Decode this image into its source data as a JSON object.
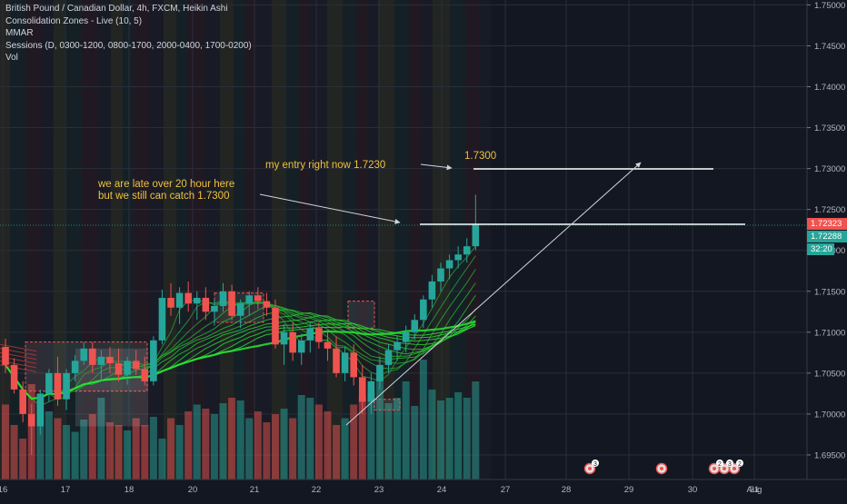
{
  "legend": {
    "title": "British Pound / Canadian Dollar, 4h, FXCM, Heikin Ashi",
    "line1": "Consolidation Zones - Live (10, 5)",
    "line2": "MMAR",
    "line3": "Sessions (D, 0300-1200, 0800-1700, 2000-0400, 1700-0200)",
    "line4": "Vol"
  },
  "badges": {
    "last_price": "1.72323",
    "second_price": "1.72288",
    "countdown": "32:20",
    "last_color": "#ef5350",
    "second_color": "#26a69a"
  },
  "annotations": {
    "note_late": "we are late over 20 hour here\nbut we still can catch 1.7300",
    "note_entry": "my entry right now 1.7230",
    "note_target": "1.7300"
  },
  "event_badges": [
    "3",
    "2",
    "3",
    "2"
  ],
  "chart_data": {
    "type": "candlestick",
    "title": "British Pound / Canadian Dollar, 4h, FXCM, Heikin Ashi",
    "y_axis_ticks": [
      "1.75000",
      "1.74500",
      "1.74000",
      "1.73500",
      "1.73000",
      "1.72500",
      "1.72000",
      "1.71500",
      "1.71000",
      "1.70500",
      "1.70000",
      "1.69500"
    ],
    "y_range": [
      1.692,
      1.7506
    ],
    "x_axis_ticks": [
      "16",
      "17",
      "18",
      "20",
      "21",
      "22",
      "23",
      "24",
      "27",
      "28",
      "29",
      "30",
      "31",
      "Aug"
    ],
    "levels": {
      "entry": 1.723,
      "target": 1.73
    },
    "up_color": "#26a69a",
    "down_color": "#ef5350",
    "candles": [
      {
        "o": 1.7082,
        "h": 1.7092,
        "l": 1.705,
        "c": 1.706
      },
      {
        "o": 1.706,
        "h": 1.7068,
        "l": 1.7025,
        "c": 1.703
      },
      {
        "o": 1.703,
        "h": 1.704,
        "l": 1.699,
        "c": 1.7
      },
      {
        "o": 1.7,
        "h": 1.7012,
        "l": 1.695,
        "c": 1.6985
      },
      {
        "o": 1.6985,
        "h": 1.703,
        "l": 1.6975,
        "c": 1.7025
      },
      {
        "o": 1.7025,
        "h": 1.7055,
        "l": 1.7015,
        "c": 1.705
      },
      {
        "o": 1.705,
        "h": 1.707,
        "l": 1.701,
        "c": 1.7018
      },
      {
        "o": 1.7018,
        "h": 1.7055,
        "l": 1.7005,
        "c": 1.705
      },
      {
        "o": 1.705,
        "h": 1.7072,
        "l": 1.704,
        "c": 1.7065
      },
      {
        "o": 1.7065,
        "h": 1.7088,
        "l": 1.706,
        "c": 1.708
      },
      {
        "o": 1.708,
        "h": 1.7088,
        "l": 1.705,
        "c": 1.706
      },
      {
        "o": 1.706,
        "h": 1.7078,
        "l": 1.704,
        "c": 1.707
      },
      {
        "o": 1.707,
        "h": 1.7082,
        "l": 1.705,
        "c": 1.7062
      },
      {
        "o": 1.7062,
        "h": 1.708,
        "l": 1.704,
        "c": 1.7048
      },
      {
        "o": 1.7048,
        "h": 1.707,
        "l": 1.7036,
        "c": 1.7065
      },
      {
        "o": 1.7065,
        "h": 1.7078,
        "l": 1.7048,
        "c": 1.7055
      },
      {
        "o": 1.7055,
        "h": 1.707,
        "l": 1.7035,
        "c": 1.704
      },
      {
        "o": 1.704,
        "h": 1.7095,
        "l": 1.7035,
        "c": 1.709
      },
      {
        "o": 1.709,
        "h": 1.7152,
        "l": 1.7085,
        "c": 1.7142
      },
      {
        "o": 1.7142,
        "h": 1.716,
        "l": 1.712,
        "c": 1.713
      },
      {
        "o": 1.713,
        "h": 1.7155,
        "l": 1.711,
        "c": 1.7148
      },
      {
        "o": 1.7148,
        "h": 1.7162,
        "l": 1.7125,
        "c": 1.7135
      },
      {
        "o": 1.7135,
        "h": 1.715,
        "l": 1.7115,
        "c": 1.7142
      },
      {
        "o": 1.7142,
        "h": 1.7155,
        "l": 1.7115,
        "c": 1.7125
      },
      {
        "o": 1.7125,
        "h": 1.714,
        "l": 1.7108,
        "c": 1.7132
      },
      {
        "o": 1.7132,
        "h": 1.716,
        "l": 1.7125,
        "c": 1.715
      },
      {
        "o": 1.715,
        "h": 1.7158,
        "l": 1.7115,
        "c": 1.712
      },
      {
        "o": 1.712,
        "h": 1.714,
        "l": 1.7105,
        "c": 1.7135
      },
      {
        "o": 1.7135,
        "h": 1.715,
        "l": 1.712,
        "c": 1.7145
      },
      {
        "o": 1.7145,
        "h": 1.7155,
        "l": 1.7128,
        "c": 1.7138
      },
      {
        "o": 1.7138,
        "h": 1.7148,
        "l": 1.712,
        "c": 1.713
      },
      {
        "o": 1.713,
        "h": 1.714,
        "l": 1.708,
        "c": 1.7085
      },
      {
        "o": 1.7085,
        "h": 1.711,
        "l": 1.706,
        "c": 1.71
      },
      {
        "o": 1.71,
        "h": 1.7112,
        "l": 1.7065,
        "c": 1.7075
      },
      {
        "o": 1.7075,
        "h": 1.7098,
        "l": 1.706,
        "c": 1.709
      },
      {
        "o": 1.709,
        "h": 1.7112,
        "l": 1.7075,
        "c": 1.7105
      },
      {
        "o": 1.7105,
        "h": 1.7112,
        "l": 1.708,
        "c": 1.7088
      },
      {
        "o": 1.7088,
        "h": 1.71,
        "l": 1.7065,
        "c": 1.708
      },
      {
        "o": 1.708,
        "h": 1.7095,
        "l": 1.7045,
        "c": 1.705
      },
      {
        "o": 1.705,
        "h": 1.7082,
        "l": 1.704,
        "c": 1.7075
      },
      {
        "o": 1.7075,
        "h": 1.7085,
        "l": 1.7035,
        "c": 1.7045
      },
      {
        "o": 1.7045,
        "h": 1.706,
        "l": 1.7,
        "c": 1.7015
      },
      {
        "o": 1.7015,
        "h": 1.705,
        "l": 1.7,
        "c": 1.704
      },
      {
        "o": 1.704,
        "h": 1.707,
        "l": 1.703,
        "c": 1.706
      },
      {
        "o": 1.706,
        "h": 1.7085,
        "l": 1.705,
        "c": 1.7078
      },
      {
        "o": 1.7078,
        "h": 1.7095,
        "l": 1.7065,
        "c": 1.7088
      },
      {
        "o": 1.7088,
        "h": 1.7108,
        "l": 1.7075,
        "c": 1.71
      },
      {
        "o": 1.71,
        "h": 1.7122,
        "l": 1.709,
        "c": 1.7115
      },
      {
        "o": 1.7115,
        "h": 1.7145,
        "l": 1.7105,
        "c": 1.714
      },
      {
        "o": 1.714,
        "h": 1.717,
        "l": 1.713,
        "c": 1.7162
      },
      {
        "o": 1.7162,
        "h": 1.7185,
        "l": 1.715,
        "c": 1.7178
      },
      {
        "o": 1.7178,
        "h": 1.7195,
        "l": 1.7165,
        "c": 1.7188
      },
      {
        "o": 1.7188,
        "h": 1.7205,
        "l": 1.7178,
        "c": 1.7195
      },
      {
        "o": 1.7195,
        "h": 1.7215,
        "l": 1.7185,
        "c": 1.7205
      },
      {
        "o": 1.7205,
        "h": 1.7268,
        "l": 1.72,
        "c": 1.7232
      }
    ],
    "volumes": [
      0.55,
      0.4,
      0.3,
      0.7,
      0.62,
      0.5,
      0.45,
      0.4,
      0.35,
      0.44,
      0.48,
      0.6,
      0.42,
      0.4,
      0.36,
      0.45,
      0.4,
      0.46,
      0.3,
      0.45,
      0.4,
      0.5,
      0.55,
      0.52,
      0.48,
      0.56,
      0.6,
      0.58,
      0.45,
      0.5,
      0.42,
      0.48,
      0.52,
      0.45,
      0.62,
      0.6,
      0.55,
      0.5,
      0.4,
      0.45,
      0.55,
      0.62,
      0.65,
      0.78,
      0.56,
      0.6,
      0.72,
      0.54,
      0.88,
      0.66,
      0.58,
      0.6,
      0.64,
      0.6,
      0.72
    ]
  }
}
